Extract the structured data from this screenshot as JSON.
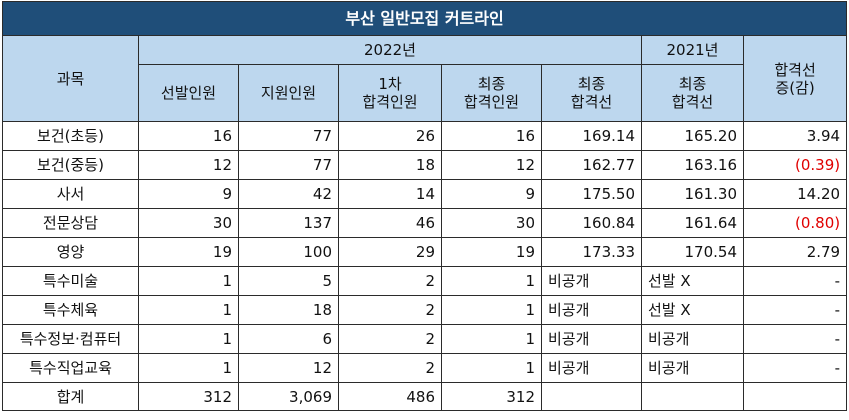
{
  "title": "부산 일반모집 커트라인",
  "headers": {
    "subject": "과목",
    "year_2022": "2022년",
    "year_2021": "2021년",
    "change_line1": "합격선",
    "change_line2": "증(감)",
    "selected": "선발인원",
    "applicants": "지원인원",
    "first_line1": "1차",
    "first_line2": "합격인원",
    "final_line1": "최종",
    "final_line2": "합격인원",
    "cut_line1": "최종",
    "cut_line2": "합격선",
    "cut21_line1": "최종",
    "cut21_line2": "합격선"
  },
  "rows": [
    {
      "subject": "보건(초등)",
      "selected": "16",
      "applicants": "77",
      "first": "26",
      "final": "16",
      "cut2022": "169.14",
      "cut2021": "165.20",
      "change": "3.94",
      "negative": false
    },
    {
      "subject": "보건(중등)",
      "selected": "12",
      "applicants": "77",
      "first": "18",
      "final": "12",
      "cut2022": "162.77",
      "cut2021": "163.16",
      "change": "(0.39)",
      "negative": true
    },
    {
      "subject": "사서",
      "selected": "9",
      "applicants": "42",
      "first": "14",
      "final": "9",
      "cut2022": "175.50",
      "cut2021": "161.30",
      "change": "14.20",
      "negative": false
    },
    {
      "subject": "전문상담",
      "selected": "30",
      "applicants": "137",
      "first": "46",
      "final": "30",
      "cut2022": "160.84",
      "cut2021": "161.64",
      "change": "(0.80)",
      "negative": true
    },
    {
      "subject": "영양",
      "selected": "19",
      "applicants": "100",
      "first": "29",
      "final": "19",
      "cut2022": "173.33",
      "cut2021": "170.54",
      "change": "2.79",
      "negative": false
    },
    {
      "subject": "특수미술",
      "selected": "1",
      "applicants": "5",
      "first": "2",
      "final": "1",
      "cut2022": "비공개",
      "cut2021": "선발 X",
      "change": "-",
      "negative": false
    },
    {
      "subject": "특수체육",
      "selected": "1",
      "applicants": "18",
      "first": "2",
      "final": "1",
      "cut2022": "비공개",
      "cut2021": "선발 X",
      "change": "-",
      "negative": false
    },
    {
      "subject": "특수정보·컴퓨터",
      "selected": "1",
      "applicants": "6",
      "first": "2",
      "final": "1",
      "cut2022": "비공개",
      "cut2021": "비공개",
      "change": "-",
      "negative": false
    },
    {
      "subject": "특수직업교육",
      "selected": "1",
      "applicants": "12",
      "first": "2",
      "final": "1",
      "cut2022": "비공개",
      "cut2021": "비공개",
      "change": "-",
      "negative": false
    }
  ],
  "total": {
    "label": "합계",
    "selected": "312",
    "applicants": "3,069",
    "first": "486",
    "final": "312",
    "cut2022": "",
    "cut2021": "",
    "change": ""
  }
}
